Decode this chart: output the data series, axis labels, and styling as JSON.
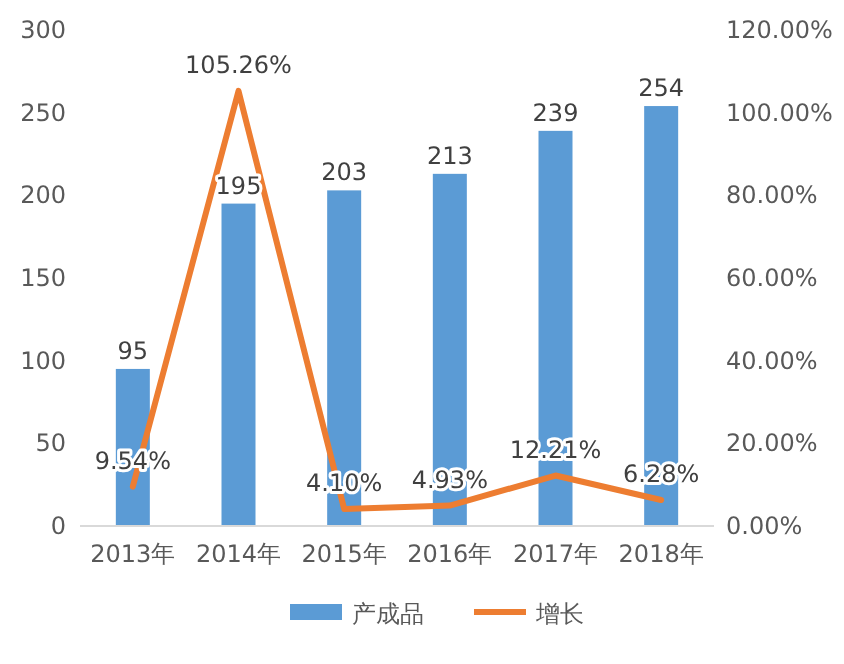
{
  "chart_data": {
    "type": "bar",
    "categories": [
      "2013年",
      "2014年",
      "2015年",
      "2016年",
      "2017年",
      "2018年"
    ],
    "series": [
      {
        "name": "产成品",
        "color": "#5b9bd5",
        "values": [
          95,
          195,
          203,
          213,
          239,
          254
        ],
        "value_labels": [
          "95",
          "195",
          "203",
          "213",
          "239",
          "254"
        ]
      },
      {
        "name": "增长",
        "type": "line",
        "axis": "y2",
        "color": "#ed7d31",
        "values": [
          9.54,
          105.26,
          4.1,
          4.93,
          12.21,
          6.28
        ],
        "value_labels": [
          "9.54%",
          "105.26%",
          "4.10%",
          "4.93%",
          "12.21%",
          "6.28%"
        ]
      }
    ],
    "ylim": [
      0,
      300
    ],
    "yticks": [
      0,
      50,
      100,
      150,
      200,
      250,
      300
    ],
    "y2lim": [
      0,
      120
    ],
    "y2ticks": [
      {
        "value": 0,
        "label": "0.00%"
      },
      {
        "value": 20,
        "label": "20.00%"
      },
      {
        "value": 40,
        "label": "40.00%"
      },
      {
        "value": 60,
        "label": "60.00%"
      },
      {
        "value": 80,
        "label": "80.00%"
      },
      {
        "value": 100,
        "label": "100.00%"
      },
      {
        "value": 120,
        "label": "120.00%"
      }
    ],
    "legend": "bottom"
  }
}
